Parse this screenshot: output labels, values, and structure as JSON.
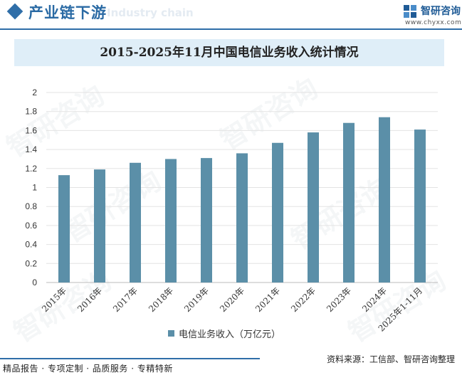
{
  "header": {
    "section_title": "产业链下游",
    "section_ghost": "Industry chain",
    "brand_name": "智研咨询",
    "brand_url": "www.chyxx.com"
  },
  "watermark_text": "智研咨询",
  "chart_data": {
    "type": "bar",
    "title": "2015-2025年11月中国电信业务收入统计情况",
    "xlabel": "",
    "ylabel": "",
    "ylim": [
      0,
      2
    ],
    "yticks": [
      "0",
      "0.2",
      "0.4",
      "0.6",
      "0.8",
      "1",
      "1.2",
      "1.4",
      "1.6",
      "1.8",
      "2"
    ],
    "grid": true,
    "legend_position": "bottom",
    "bar_color": "#5b8fa8",
    "categories": [
      "2015年",
      "2016年",
      "2017年",
      "2018年",
      "2019年",
      "2020年",
      "2021年",
      "2022年",
      "2023年",
      "2024年",
      "2025年1-11月"
    ],
    "series": [
      {
        "name": "电信业务收入（万亿元）",
        "values": [
          1.13,
          1.19,
          1.26,
          1.3,
          1.31,
          1.36,
          1.47,
          1.58,
          1.68,
          1.74,
          1.61
        ]
      }
    ]
  },
  "footer": {
    "left": "精品报告 · 专项定制 · 品质服务 · 专精特新",
    "source": "资料来源：工信部、智研咨询整理"
  },
  "colors": {
    "accent": "#2f6ea8",
    "title_band": "#dfeef8",
    "bar": "#5b8fa8"
  }
}
